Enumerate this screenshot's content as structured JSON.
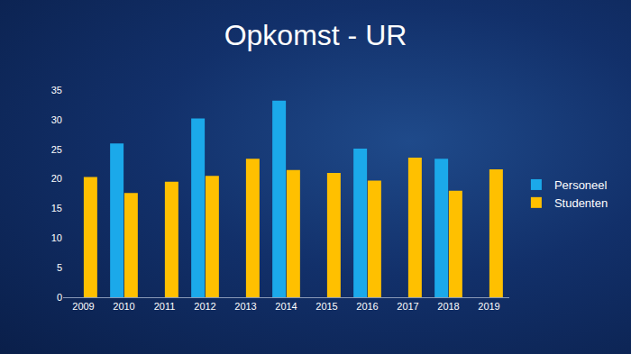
{
  "chart_data": {
    "type": "bar",
    "title": "Opkomst - UR",
    "categories": [
      "2009",
      "2010",
      "2011",
      "2012",
      "2013",
      "2014",
      "2015",
      "2016",
      "2017",
      "2018",
      "2019"
    ],
    "series": [
      {
        "name": "Personeel",
        "color": "#1ba9ea",
        "values": [
          null,
          26.0,
          null,
          30.2,
          null,
          33.2,
          null,
          25.1,
          null,
          23.4,
          null
        ]
      },
      {
        "name": "Studenten",
        "color": "#ffc000",
        "values": [
          20.3,
          17.6,
          19.5,
          20.5,
          23.4,
          21.5,
          21.0,
          19.7,
          23.6,
          18.0,
          21.6
        ]
      }
    ],
    "ylim": [
      0,
      35
    ],
    "yticks": [
      0,
      5,
      10,
      15,
      20,
      25,
      30,
      35
    ],
    "grid": false,
    "legend": "right"
  }
}
